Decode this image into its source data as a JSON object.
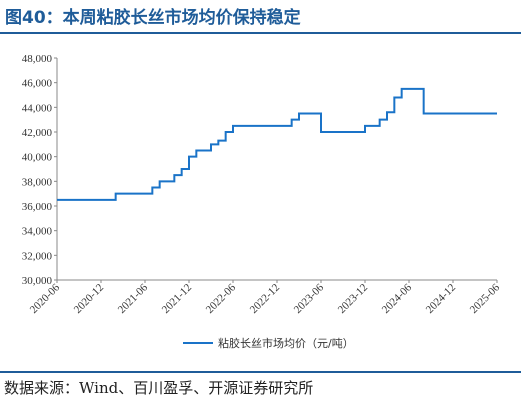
{
  "header": {
    "title": "图40：本周粘胶长丝市场均价保持稳定"
  },
  "footer": {
    "source": "数据来源：Wind、百川盈孚、开源证券研究所"
  },
  "colors": {
    "accent": "#1f5c99",
    "series": "#1a73c8",
    "axis": "#888888"
  },
  "chart_data": {
    "type": "line",
    "title": "",
    "xlabel": "",
    "ylabel": "",
    "ylim": [
      30000,
      48000
    ],
    "y_ticks": [
      "48,000",
      "46,000",
      "44,000",
      "42,000",
      "40,000",
      "38,000",
      "36,000",
      "34,000",
      "32,000",
      "30,000"
    ],
    "x_ticks": [
      "2020-06",
      "2020-12",
      "2021-06",
      "2021-12",
      "2022-06",
      "2022-12",
      "2023-06",
      "2023-12",
      "2024-06",
      "2024-12",
      "2025-06"
    ],
    "xlim": [
      "2020-06",
      "2025-06"
    ],
    "grid": false,
    "legend_position": "bottom",
    "series": [
      {
        "name": "粘胶长丝市场均价（元/吨）",
        "step": true,
        "points": [
          [
            "2020-06",
            36500
          ],
          [
            "2021-02",
            37000
          ],
          [
            "2021-07",
            37500
          ],
          [
            "2021-08",
            38000
          ],
          [
            "2021-10",
            38500
          ],
          [
            "2021-11",
            39000
          ],
          [
            "2021-12",
            39500
          ],
          [
            "2021-12",
            40000
          ],
          [
            "2022-01",
            40500
          ],
          [
            "2022-03",
            41000
          ],
          [
            "2022-04",
            41300
          ],
          [
            "2022-05",
            42000
          ],
          [
            "2022-06",
            42500
          ],
          [
            "2023-02",
            43000
          ],
          [
            "2023-03",
            43500
          ],
          [
            "2023-06",
            42000
          ],
          [
            "2023-12",
            42500
          ],
          [
            "2024-02",
            43000
          ],
          [
            "2024-03",
            43600
          ],
          [
            "2024-04",
            44800
          ],
          [
            "2024-05",
            45500
          ],
          [
            "2024-08",
            43500
          ],
          [
            "2025-06",
            43500
          ]
        ]
      }
    ]
  }
}
